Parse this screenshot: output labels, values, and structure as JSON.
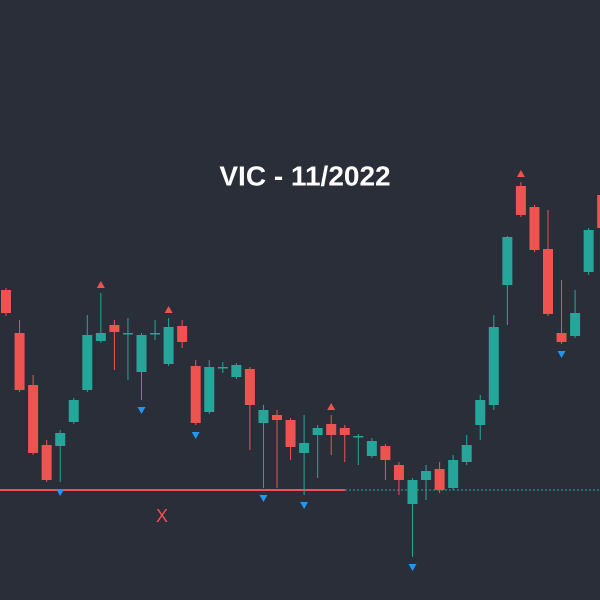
{
  "chart_data": {
    "type": "candlestick",
    "title": "VIC - 11/2022",
    "annotation": "X",
    "ylim": [
      0,
      600
    ],
    "up_color": "#26a69a",
    "down_color": "#ef5350",
    "open": [
      310,
      267,
      215,
      155,
      154,
      178,
      210,
      259,
      275,
      267,
      228,
      267,
      236,
      274,
      234,
      188,
      233,
      223,
      231,
      177,
      185,
      180,
      147,
      165,
      176,
      172,
      164,
      144,
      154,
      135,
      96,
      120,
      131,
      112,
      138,
      175,
      195,
      315,
      414,
      393,
      351,
      267,
      264,
      328,
      405
    ],
    "high": [
      312,
      280,
      225,
      160,
      170,
      202,
      285,
      307,
      280,
      282,
      267,
      280,
      282,
      280,
      240,
      240,
      238,
      237,
      233,
      195,
      190,
      182,
      185,
      175,
      185,
      175,
      166,
      162,
      156,
      138,
      122,
      135,
      138,
      145,
      165,
      205,
      285,
      364,
      418,
      395,
      390,
      320,
      310,
      372,
      408
    ],
    "low": [
      284,
      208,
      145,
      118,
      118,
      176,
      208,
      257,
      230,
      220,
      200,
      260,
      234,
      252,
      175,
      186,
      227,
      221,
      150,
      112,
      112,
      140,
      105,
      122,
      145,
      138,
      135,
      142,
      120,
      105,
      43,
      100,
      107,
      110,
      135,
      160,
      190,
      275,
      383,
      348,
      284,
      256,
      262,
      325,
      370
    ],
    "close": [
      287,
      210,
      147,
      120,
      167,
      200,
      265,
      267,
      268,
      267,
      265,
      267,
      273,
      258,
      177,
      233,
      233,
      235,
      195,
      190,
      180,
      153,
      157,
      172,
      165,
      165,
      164,
      159,
      140,
      120,
      120,
      129,
      110,
      140,
      155,
      200,
      273,
      363,
      385,
      350,
      286,
      258,
      287,
      370,
      372
    ],
    "up_signals": [
      7,
      12,
      24,
      38
    ],
    "down_signals": [
      4,
      10,
      14,
      19,
      22,
      30,
      41
    ],
    "support": 110
  }
}
